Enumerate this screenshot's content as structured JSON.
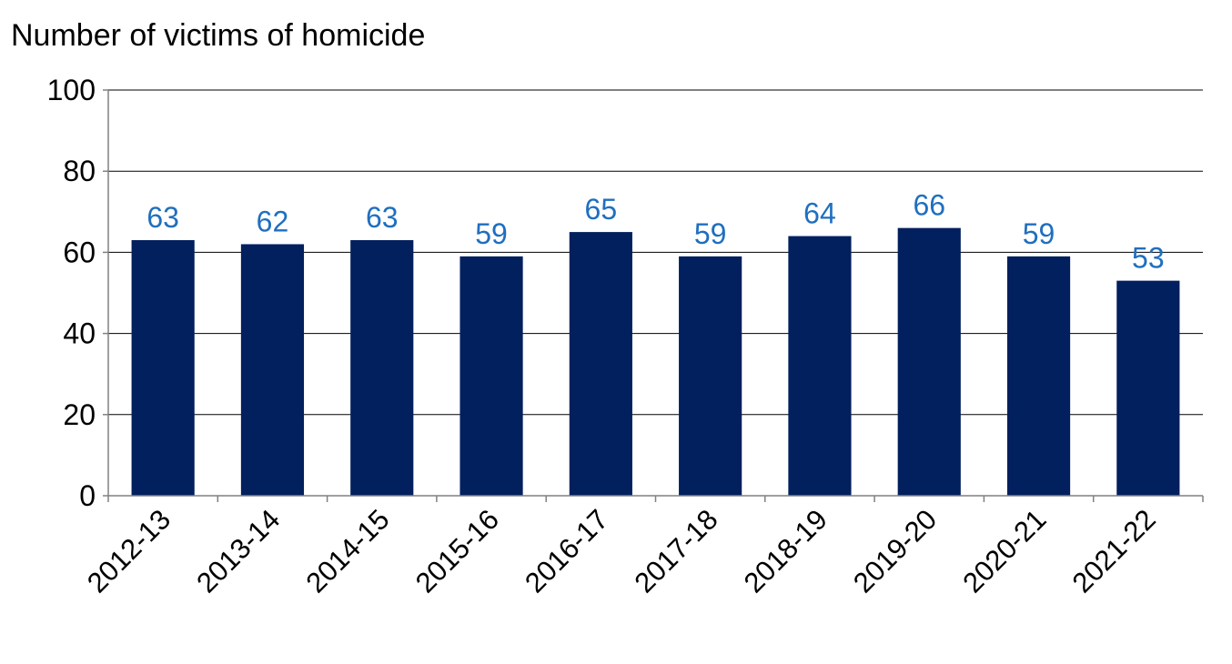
{
  "chart_data": {
    "type": "bar",
    "title": "Number of victims of homicide",
    "xlabel": "",
    "ylabel": "",
    "categories": [
      "2012-13",
      "2013-14",
      "2014-15",
      "2015-16",
      "2016-17",
      "2017-18",
      "2018-19",
      "2019-20",
      "2020-21",
      "2021-22"
    ],
    "values": [
      63,
      62,
      63,
      59,
      65,
      59,
      64,
      66,
      59,
      53
    ],
    "data_labels": [
      "63",
      "62",
      "63",
      "59",
      "65",
      "59",
      "64",
      "66",
      "59",
      "53"
    ],
    "ylim": [
      0,
      100
    ],
    "yticks": [
      0,
      20,
      40,
      60,
      80,
      100
    ],
    "ytick_labels": [
      "0",
      "20",
      "40",
      "60",
      "80",
      "100"
    ],
    "grid": true,
    "legend": "none"
  },
  "colors": {
    "bar": "#021F5E",
    "data_label": "#1F6FBF",
    "gridline": "#000000",
    "axis": "#808080"
  }
}
